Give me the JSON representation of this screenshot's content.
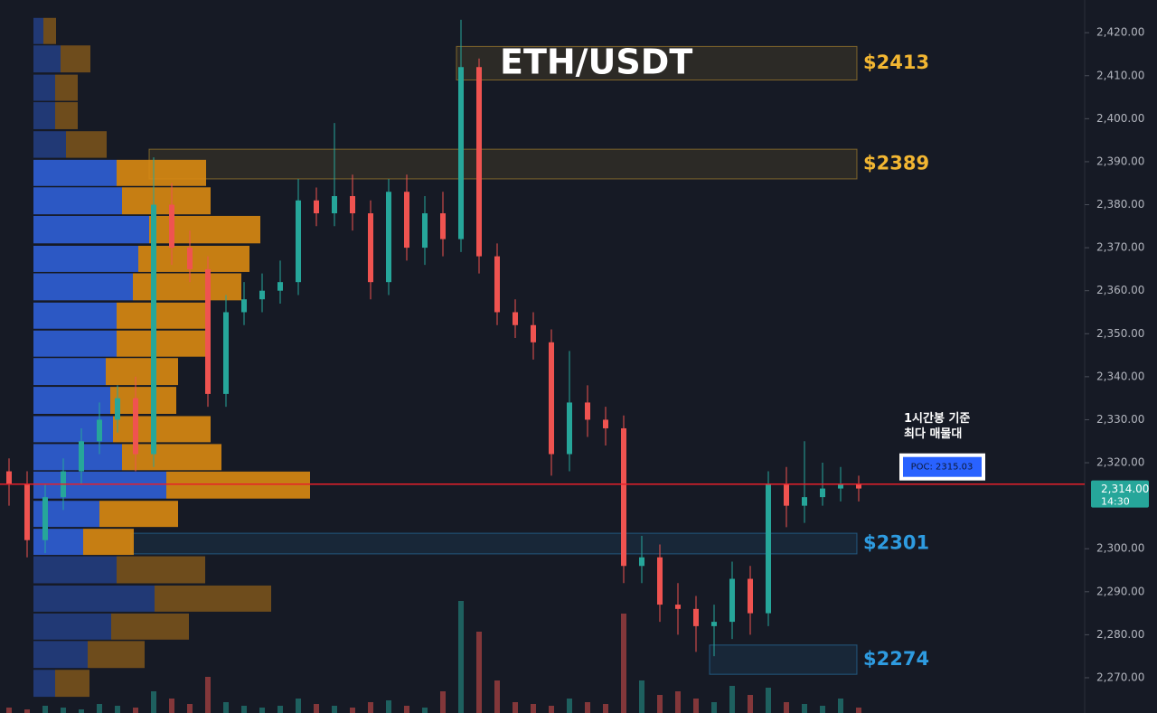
{
  "chart_data": {
    "type": "candlestick",
    "title": "ETH/USDT",
    "open": [
      2318,
      2315,
      2302,
      2312,
      2318,
      2325,
      2330,
      2335,
      2322,
      2380,
      2370,
      2365,
      2336,
      2355,
      2358,
      2360,
      2362,
      2381,
      2378,
      2382,
      2378,
      2362,
      2383,
      2370,
      2378,
      2372,
      2412,
      2368,
      2355,
      2352,
      2348,
      2322,
      2334,
      2330,
      2328,
      2296,
      2298,
      2287,
      2286,
      2282,
      2283,
      2293,
      2285,
      2315,
      2310,
      2312,
      2314,
      2315
    ],
    "high": [
      2321,
      2318,
      2315,
      2321,
      2328,
      2334,
      2338,
      2340,
      2391,
      2385,
      2374,
      2368,
      2359,
      2362,
      2364,
      2367,
      2386,
      2384,
      2399,
      2387,
      2381,
      2386,
      2387,
      2382,
      2383,
      2423,
      2414,
      2371,
      2358,
      2355,
      2351,
      2346,
      2338,
      2333,
      2331,
      2303,
      2301,
      2292,
      2289,
      2287,
      2297,
      2296,
      2318,
      2319,
      2325,
      2320,
      2319,
      2317
    ],
    "low": [
      2310,
      2298,
      2299,
      2309,
      2315,
      2322,
      2327,
      2318,
      2319,
      2366,
      2362,
      2333,
      2333,
      2352,
      2355,
      2357,
      2359,
      2375,
      2375,
      2374,
      2358,
      2359,
      2367,
      2366,
      2368,
      2369,
      2364,
      2352,
      2349,
      2344,
      2317,
      2318,
      2326,
      2324,
      2292,
      2292,
      2283,
      2280,
      2276,
      2275,
      2279,
      2280,
      2282,
      2305,
      2306,
      2310,
      2311,
      2311
    ],
    "close": [
      2315,
      2302,
      2312,
      2318,
      2325,
      2330,
      2335,
      2322,
      2380,
      2370,
      2365,
      2336,
      2355,
      2358,
      2360,
      2362,
      2381,
      2378,
      2382,
      2378,
      2362,
      2383,
      2370,
      2378,
      2372,
      2412,
      2368,
      2355,
      2352,
      2348,
      2322,
      2334,
      2330,
      2328,
      2296,
      2298,
      2287,
      2286,
      2282,
      2283,
      2293,
      2285,
      2315,
      2310,
      2312,
      2314,
      2315,
      2314
    ],
    "volume": [
      3,
      2,
      4,
      3,
      2,
      5,
      4,
      3,
      12,
      8,
      5,
      20,
      6,
      4,
      3,
      4,
      8,
      5,
      4,
      3,
      6,
      7,
      4,
      3,
      12,
      62,
      45,
      18,
      6,
      5,
      4,
      8,
      6,
      5,
      55,
      18,
      10,
      12,
      8,
      6,
      15,
      10,
      14,
      6,
      5,
      4,
      8,
      3
    ],
    "vlim": [
      0,
      100
    ],
    "up_color": "#26a69a",
    "down_color": "#ef5350",
    "ylim": [
      2261.8,
      2427.6
    ],
    "yticks": [
      {
        "value": 2420,
        "label": "2,420.00"
      },
      {
        "value": 2410,
        "label": "2,410.00"
      },
      {
        "value": 2400,
        "label": "2,400.00"
      },
      {
        "value": 2390,
        "label": "2,390.00"
      },
      {
        "value": 2380,
        "label": "2,380.00"
      },
      {
        "value": 2370,
        "label": "2,370.00"
      },
      {
        "value": 2360,
        "label": "2,360.00"
      },
      {
        "value": 2350,
        "label": "2,350.00"
      },
      {
        "value": 2340,
        "label": "2,340.00"
      },
      {
        "value": 2330,
        "label": "2,330.00"
      },
      {
        "value": 2320,
        "label": "2,320.00"
      },
      {
        "value": 2300,
        "label": "2,300.00"
      },
      {
        "value": 2290,
        "label": "2,290.00"
      },
      {
        "value": 2280,
        "label": "2,280.00"
      },
      {
        "value": 2270,
        "label": "2,270.00"
      }
    ],
    "volume_profile": {
      "levels": [
        2420.4,
        2413.9,
        2407.2,
        2400.7,
        2394.0,
        2387.4,
        2380.9,
        2374.2,
        2367.4,
        2360.9,
        2354.2,
        2347.7,
        2341.2,
        2334.5,
        2327.8,
        2321.3,
        2314.8,
        2308.1,
        2301.6,
        2295.1,
        2288.4,
        2281.9,
        2275.4,
        2268.7
      ],
      "buy": [
        11,
        30,
        24,
        24,
        36,
        92,
        98,
        128,
        116,
        110,
        92,
        92,
        80,
        85,
        88,
        98,
        147,
        73,
        55,
        92,
        134,
        86,
        60,
        24
      ],
      "sell": [
        14,
        33,
        25,
        25,
        45,
        99,
        98,
        123,
        123,
        120,
        98,
        98,
        80,
        73,
        108,
        110,
        159,
        87,
        56,
        98,
        129,
        86,
        63,
        38
      ],
      "buy_color": "#2f5fd6",
      "sell_color": "#d98a12",
      "value_area": {
        "low": 2298,
        "high": 2391
      }
    },
    "zones": [
      {
        "label": "$2413",
        "low": 2409.0,
        "high": 2416.8,
        "start": 25,
        "color": "#f2b632"
      },
      {
        "label": "$2389",
        "low": 2386.0,
        "high": 2392.9,
        "start": 8,
        "color": "#f2b632"
      },
      {
        "label": "$2301",
        "low": 2298.8,
        "high": 2303.6,
        "start": 7,
        "color": "#2e9be0"
      },
      {
        "label": "$2274",
        "low": 2270.8,
        "high": 2277.6,
        "start": 39,
        "color": "#2e9be0"
      }
    ],
    "poc": {
      "value": 2315.03,
      "label": "POC: 2315.03",
      "color": "#e5202a"
    },
    "last_price": {
      "value": 2314,
      "label": "2,314.00"
    },
    "countdown": "14:30",
    "annotation": [
      "1시간봉 기준",
      "최다 매물대"
    ]
  }
}
